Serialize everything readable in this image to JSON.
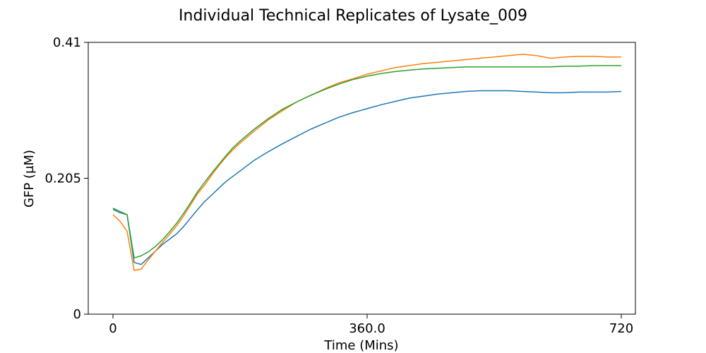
{
  "chart_data": {
    "type": "line",
    "title": "Individual Technical Replicates of Lysate_009",
    "xlabel": "Time (Mins)",
    "ylabel": "GFP (µM)",
    "xlim": [
      -35,
      740
    ],
    "ylim": [
      0,
      0.41
    ],
    "x_ticks": [
      0,
      360,
      720
    ],
    "x_tick_labels": [
      "0",
      "360.0",
      "720"
    ],
    "y_ticks": [
      0,
      0.205,
      0.41
    ],
    "y_tick_labels": [
      "0",
      "0.205",
      "0.41"
    ],
    "grid": false,
    "legend": "none",
    "x": [
      0,
      10,
      20,
      30,
      40,
      50,
      60,
      70,
      80,
      90,
      100,
      110,
      120,
      130,
      140,
      150,
      160,
      170,
      180,
      190,
      200,
      220,
      240,
      260,
      280,
      300,
      320,
      340,
      360,
      380,
      400,
      420,
      440,
      460,
      480,
      500,
      520,
      540,
      560,
      580,
      600,
      620,
      640,
      660,
      680,
      700,
      720
    ],
    "series": [
      {
        "color": "#1f77b4",
        "values": [
          0.158,
          0.153,
          0.15,
          0.078,
          0.075,
          0.085,
          0.095,
          0.105,
          0.113,
          0.121,
          0.132,
          0.145,
          0.158,
          0.17,
          0.18,
          0.19,
          0.2,
          0.208,
          0.216,
          0.224,
          0.232,
          0.245,
          0.257,
          0.268,
          0.279,
          0.288,
          0.297,
          0.304,
          0.31,
          0.316,
          0.321,
          0.326,
          0.329,
          0.332,
          0.334,
          0.336,
          0.337,
          0.337,
          0.337,
          0.336,
          0.335,
          0.334,
          0.334,
          0.335,
          0.335,
          0.335,
          0.336
        ]
      },
      {
        "color": "#ff7f0e",
        "values": [
          0.15,
          0.14,
          0.125,
          0.066,
          0.068,
          0.082,
          0.095,
          0.108,
          0.12,
          0.133,
          0.148,
          0.165,
          0.182,
          0.195,
          0.21,
          0.224,
          0.237,
          0.248,
          0.258,
          0.267,
          0.276,
          0.293,
          0.307,
          0.32,
          0.33,
          0.34,
          0.349,
          0.355,
          0.362,
          0.367,
          0.372,
          0.375,
          0.378,
          0.38,
          0.382,
          0.384,
          0.386,
          0.388,
          0.39,
          0.392,
          0.39,
          0.386,
          0.388,
          0.389,
          0.389,
          0.388,
          0.388
        ]
      },
      {
        "color": "#2ca02c",
        "values": [
          0.16,
          0.155,
          0.15,
          0.085,
          0.088,
          0.094,
          0.102,
          0.112,
          0.124,
          0.137,
          0.152,
          0.168,
          0.185,
          0.199,
          0.213,
          0.226,
          0.239,
          0.251,
          0.261,
          0.27,
          0.279,
          0.295,
          0.309,
          0.32,
          0.33,
          0.339,
          0.347,
          0.354,
          0.359,
          0.363,
          0.366,
          0.368,
          0.37,
          0.371,
          0.372,
          0.373,
          0.373,
          0.373,
          0.373,
          0.373,
          0.373,
          0.373,
          0.374,
          0.374,
          0.375,
          0.375,
          0.375
        ]
      }
    ]
  }
}
